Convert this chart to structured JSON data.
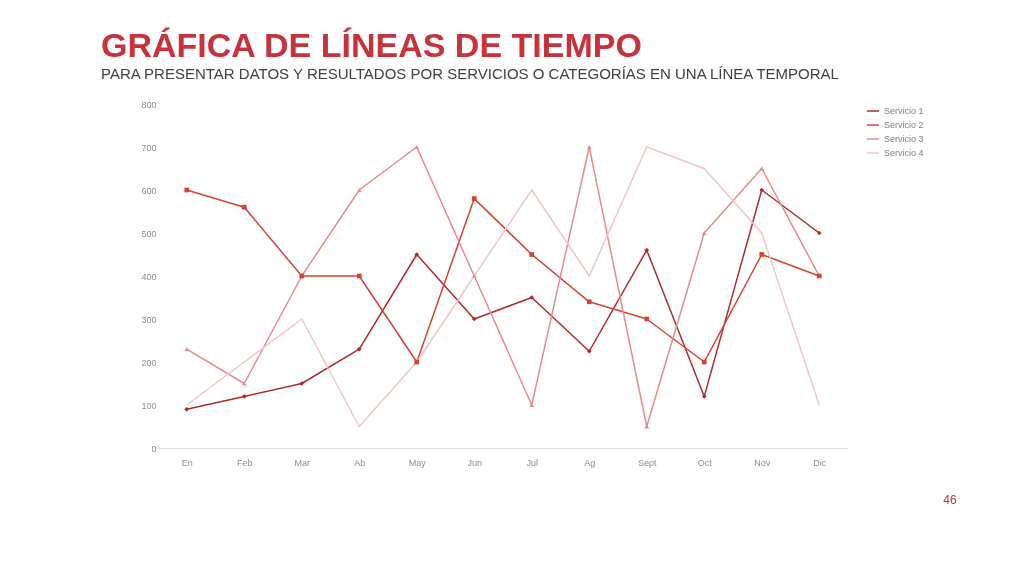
{
  "chart_data": {
    "type": "line",
    "title": "GRÁFICA DE LÍNEAS DE TIEMPO",
    "subtitle": "PARA PRESENTAR DATOS Y RESULTADOS POR SERVICIOS O CATEGORÍAS EN UNA LÍNEA TEMPORAL",
    "categories": [
      "En",
      "Feb",
      "Mar",
      "Ab",
      "May",
      "Jun",
      "Jul",
      "Ag",
      "Sept",
      "Oct",
      "Nov",
      "Dic"
    ],
    "series": [
      {
        "name": "Servicio 1",
        "color": "#b22a2a",
        "marker": "diamond",
        "values": [
          90,
          120,
          150,
          230,
          450,
          300,
          350,
          225,
          460,
          120,
          600,
          500
        ]
      },
      {
        "name": "Servicio 2",
        "color": "#d9412f",
        "marker": "square",
        "values": [
          600,
          560,
          400,
          400,
          200,
          580,
          450,
          340,
          300,
          200,
          450,
          400
        ]
      },
      {
        "name": "Servicio 3",
        "color": "#e88a8a",
        "marker": "triangle",
        "values": [
          230,
          150,
          400,
          600,
          700,
          400,
          100,
          700,
          50,
          500,
          650,
          400
        ]
      },
      {
        "name": "Servicio 4",
        "color": "#f2c4c4",
        "marker": "none",
        "values": [
          100,
          200,
          300,
          50,
          200,
          400,
          600,
          400,
          700,
          650,
          500,
          100
        ]
      }
    ],
    "ylim": [
      0,
      800
    ],
    "yticks": [
      0,
      100,
      200,
      300,
      400,
      500,
      600,
      700,
      800
    ],
    "grid": false,
    "legend": "right",
    "line_style": "solid",
    "annotations": [
      "46"
    ]
  }
}
